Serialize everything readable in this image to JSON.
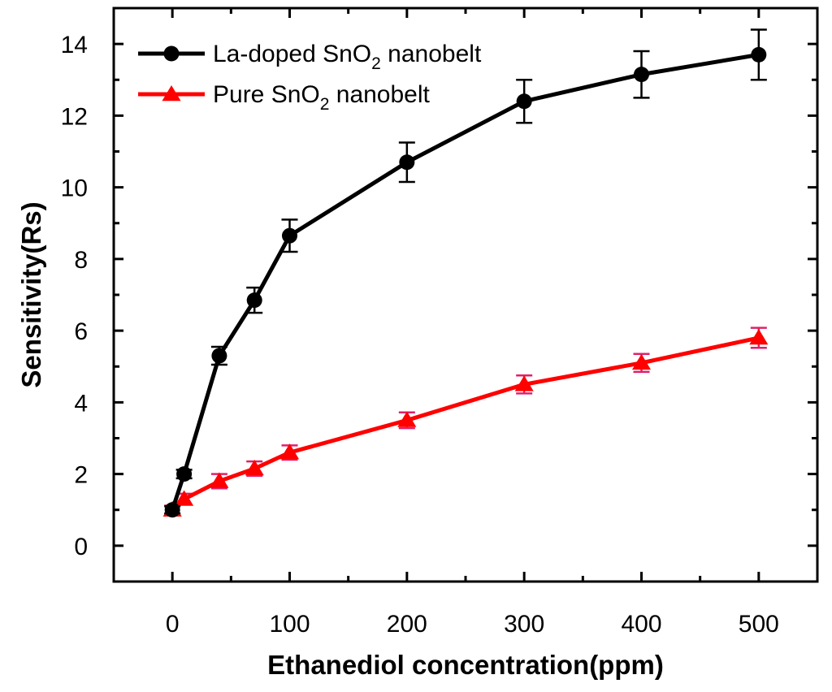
{
  "chart_data": {
    "type": "line",
    "title": "",
    "xlabel": "Ethanediol concentration(ppm)",
    "ylabel": "Sensitivity(Rs)",
    "xlim": [
      -50,
      550
    ],
    "ylim": [
      -1,
      15
    ],
    "xticks": [
      0,
      100,
      200,
      300,
      400,
      500
    ],
    "yticks": [
      0,
      2,
      4,
      6,
      8,
      10,
      12,
      14
    ],
    "grid": false,
    "legend_position": "top-left",
    "series": [
      {
        "name": "La-doped SnO2 nanobelt",
        "legend": {
          "pre": "La-doped SnO",
          "sub": "2",
          "post": " nanobelt"
        },
        "color": "#000000",
        "marker": "circle",
        "x": [
          0,
          10,
          40,
          70,
          100,
          200,
          300,
          400,
          500
        ],
        "y": [
          1.0,
          2.0,
          5.3,
          6.85,
          8.65,
          10.7,
          12.4,
          13.15,
          13.7
        ],
        "err": [
          0.1,
          0.12,
          0.25,
          0.35,
          0.45,
          0.55,
          0.6,
          0.65,
          0.7
        ]
      },
      {
        "name": "Pure SnO2 nanobelt",
        "legend": {
          "pre": "Pure SnO",
          "sub": "2",
          "post": " nanobelt"
        },
        "color": "#ff0000",
        "error_color": "#e0206a",
        "marker": "triangle",
        "x": [
          0,
          10,
          40,
          70,
          100,
          200,
          300,
          400,
          500
        ],
        "y": [
          1.0,
          1.3,
          1.8,
          2.15,
          2.6,
          3.5,
          4.5,
          5.1,
          5.8
        ],
        "err": [
          0.12,
          0.15,
          0.2,
          0.2,
          0.2,
          0.22,
          0.25,
          0.25,
          0.28
        ]
      }
    ]
  }
}
